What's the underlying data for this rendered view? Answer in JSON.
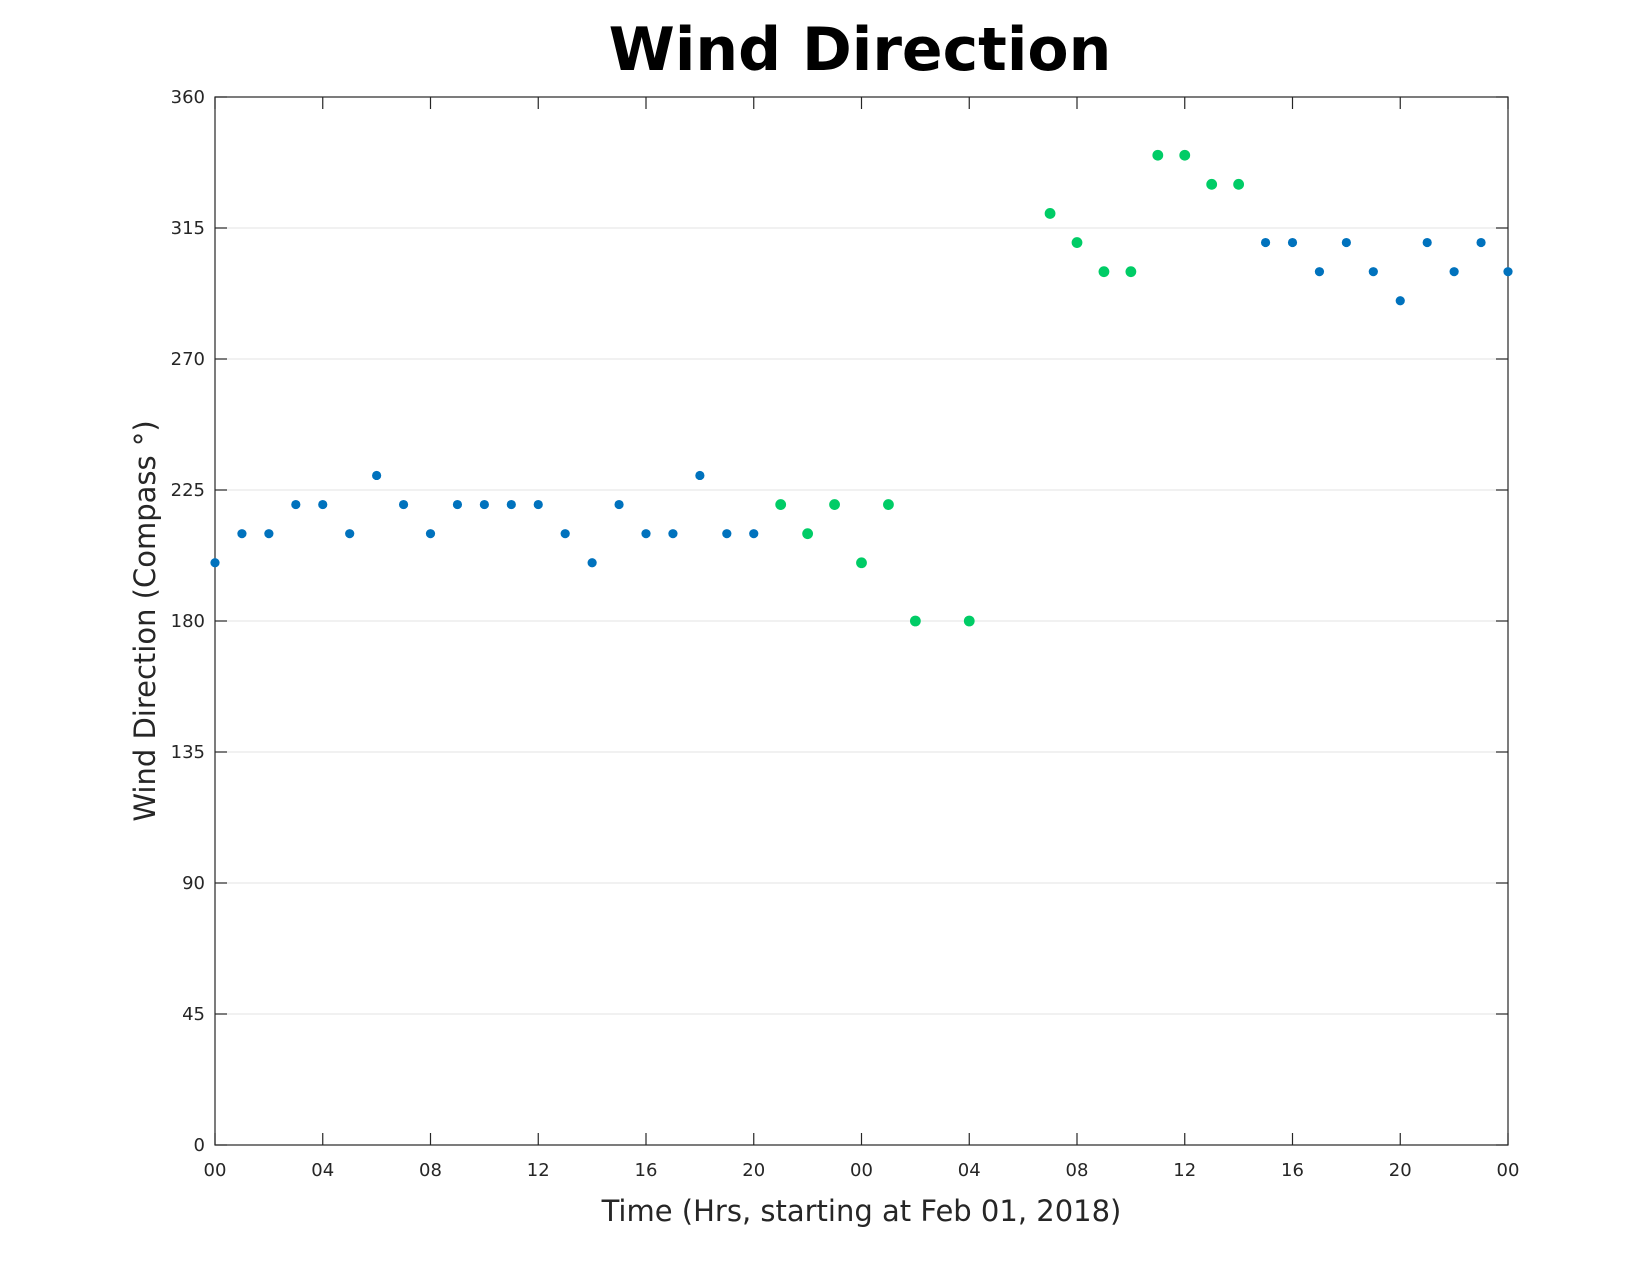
{
  "chart_data": {
    "type": "scatter",
    "title": "Wind Direction",
    "xlabel": "Time (Hrs, starting at Feb 01, 2018)",
    "ylabel": "Wind Direction (Compass °)",
    "ylim": [
      0,
      360
    ],
    "xlim": [
      "2018-02-01 00:00",
      "2018-02-03 00:00"
    ],
    "x_tick_labels": [
      "00",
      "04",
      "08",
      "12",
      "16",
      "20",
      "00",
      "04",
      "08",
      "12",
      "16",
      "20",
      "00"
    ],
    "y_tick_labels": [
      "0",
      "45",
      "90",
      "135",
      "180",
      "225",
      "270",
      "315",
      "360"
    ],
    "grid": "horizontal",
    "legend": "none",
    "colors": {
      "series_blue": "#0072BD",
      "series_green": "#00CC66",
      "grid": "#e3e3e3",
      "axis": "#262626"
    },
    "series": [
      {
        "color": "#0072BD",
        "points": [
          {
            "x": "2018-02-01 00:00",
            "y": 200
          },
          {
            "x": "2018-02-01 01:00",
            "y": 210
          },
          {
            "x": "2018-02-01 02:00",
            "y": 210
          },
          {
            "x": "2018-02-01 03:00",
            "y": 220
          },
          {
            "x": "2018-02-01 04:00",
            "y": 220
          },
          {
            "x": "2018-02-01 05:00",
            "y": 210
          },
          {
            "x": "2018-02-01 06:00",
            "y": 230
          },
          {
            "x": "2018-02-01 07:00",
            "y": 220
          },
          {
            "x": "2018-02-01 08:00",
            "y": 210
          },
          {
            "x": "2018-02-01 09:00",
            "y": 220
          },
          {
            "x": "2018-02-01 10:00",
            "y": 220
          },
          {
            "x": "2018-02-01 11:00",
            "y": 220
          },
          {
            "x": "2018-02-01 12:00",
            "y": 220
          },
          {
            "x": "2018-02-01 13:00",
            "y": 210
          },
          {
            "x": "2018-02-01 14:00",
            "y": 200
          },
          {
            "x": "2018-02-01 15:00",
            "y": 220
          },
          {
            "x": "2018-02-01 16:00",
            "y": 210
          },
          {
            "x": "2018-02-01 17:00",
            "y": 210
          },
          {
            "x": "2018-02-01 18:00",
            "y": 230
          },
          {
            "x": "2018-02-01 19:00",
            "y": 210
          },
          {
            "x": "2018-02-01 20:00",
            "y": 210
          },
          {
            "x": "2018-02-02 15:00",
            "y": 310
          },
          {
            "x": "2018-02-02 16:00",
            "y": 310
          },
          {
            "x": "2018-02-02 17:00",
            "y": 300
          },
          {
            "x": "2018-02-02 18:00",
            "y": 310
          },
          {
            "x": "2018-02-02 19:00",
            "y": 300
          },
          {
            "x": "2018-02-02 20:00",
            "y": 290
          },
          {
            "x": "2018-02-02 21:00",
            "y": 310
          },
          {
            "x": "2018-02-02 22:00",
            "y": 300
          },
          {
            "x": "2018-02-02 23:00",
            "y": 310
          },
          {
            "x": "2018-02-03 00:00",
            "y": 300
          }
        ]
      },
      {
        "color": "#00CC66",
        "points": [
          {
            "x": "2018-02-01 21:00",
            "y": 220
          },
          {
            "x": "2018-02-01 22:00",
            "y": 210
          },
          {
            "x": "2018-02-01 23:00",
            "y": 220
          },
          {
            "x": "2018-02-02 00:00",
            "y": 200
          },
          {
            "x": "2018-02-02 01:00",
            "y": 220
          },
          {
            "x": "2018-02-02 02:00",
            "y": 180
          },
          {
            "x": "2018-02-02 04:00",
            "y": 180
          },
          {
            "x": "2018-02-02 07:00",
            "y": 320
          },
          {
            "x": "2018-02-02 08:00",
            "y": 310
          },
          {
            "x": "2018-02-02 09:00",
            "y": 300
          },
          {
            "x": "2018-02-02 10:00",
            "y": 300
          },
          {
            "x": "2018-02-02 11:00",
            "y": 340
          },
          {
            "x": "2018-02-02 12:00",
            "y": 340
          },
          {
            "x": "2018-02-02 13:00",
            "y": 330
          },
          {
            "x": "2018-02-02 14:00",
            "y": 330
          }
        ]
      }
    ]
  }
}
